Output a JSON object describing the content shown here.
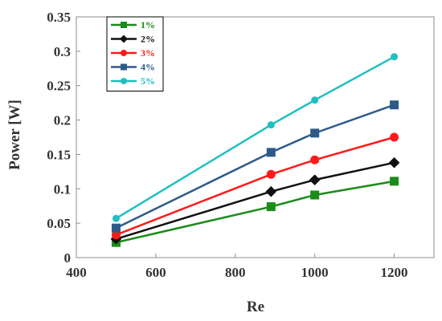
{
  "chart_data": {
    "type": "line",
    "title": "",
    "xlabel": "Re",
    "ylabel": "Power [W]",
    "xlim": [
      400,
      1300
    ],
    "ylim": [
      0,
      0.35
    ],
    "xticks": [
      400,
      600,
      800,
      1000,
      1200
    ],
    "yticks": [
      0,
      0.05,
      0.1,
      0.15,
      0.2,
      0.25,
      0.3,
      0.35
    ],
    "grid": false,
    "legend_position": "top-left",
    "x": [
      500,
      890,
      1000,
      1200
    ],
    "series": [
      {
        "name": "1%",
        "color": "#1a8c1a",
        "marker": "square",
        "values": [
          0.022,
          0.074,
          0.091,
          0.111
        ]
      },
      {
        "name": "2%",
        "color": "#111111",
        "marker": "diamond",
        "values": [
          0.027,
          0.096,
          0.113,
          0.138
        ]
      },
      {
        "name": "3%",
        "color": "#ff1a1a",
        "marker": "circle",
        "values": [
          0.033,
          0.121,
          0.142,
          0.175
        ]
      },
      {
        "name": "4%",
        "color": "#2e5a8a",
        "marker": "square",
        "values": [
          0.043,
          0.153,
          0.181,
          0.222
        ]
      },
      {
        "name": "5%",
        "color": "#1fbfbf",
        "marker": "circle",
        "values": [
          0.057,
          0.193,
          0.229,
          0.292
        ]
      }
    ]
  }
}
